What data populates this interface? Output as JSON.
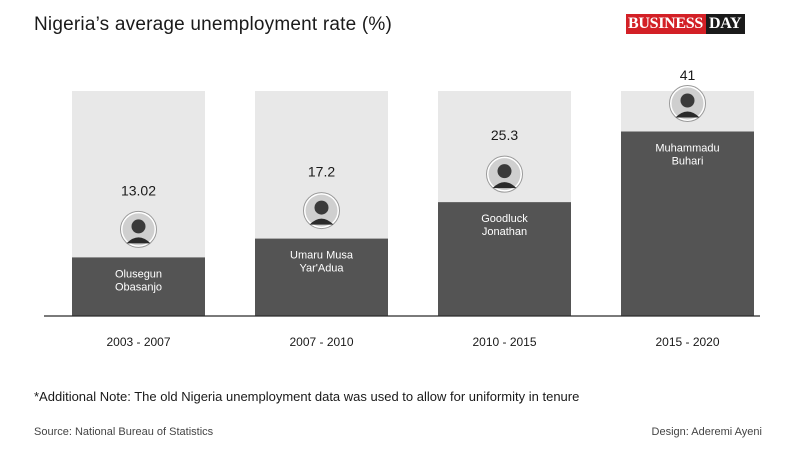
{
  "title": "Nigeria’s average unemployment rate (%)",
  "logo": {
    "part1": "BUSINESS",
    "part2": "DAY"
  },
  "note": "*Additional Note: The old Nigeria unemployment data was used to allow for uniformity in tenure",
  "source": "Source: National Bureau of Statistics",
  "design": "Design: Aderemi Ayeni",
  "colors": {
    "bar_fill": "#545454",
    "bar_background": "#e8e8e8",
    "text": "#1a1a1a",
    "logo_red": "#d32026"
  },
  "chart_data": {
    "type": "bar",
    "categories": [
      "2003 - 2007",
      "2007 - 2010",
      "2010 - 2015",
      "2015 - 2020"
    ],
    "values": [
      13.02,
      17.2,
      25.3,
      41
    ],
    "value_labels": [
      "13.02",
      "17.2",
      "25.3",
      "41"
    ],
    "presidents": [
      {
        "first": "Olusegun",
        "second": "Obasanjo"
      },
      {
        "first": "Umaru Musa",
        "second": "Yar'Adua"
      },
      {
        "first": "Goodluck",
        "second": "Jonathan"
      },
      {
        "first": "Muhammadu",
        "second": "Buhari"
      }
    ],
    "ylim": [
      0,
      50
    ],
    "grid": false,
    "legend": "none"
  }
}
